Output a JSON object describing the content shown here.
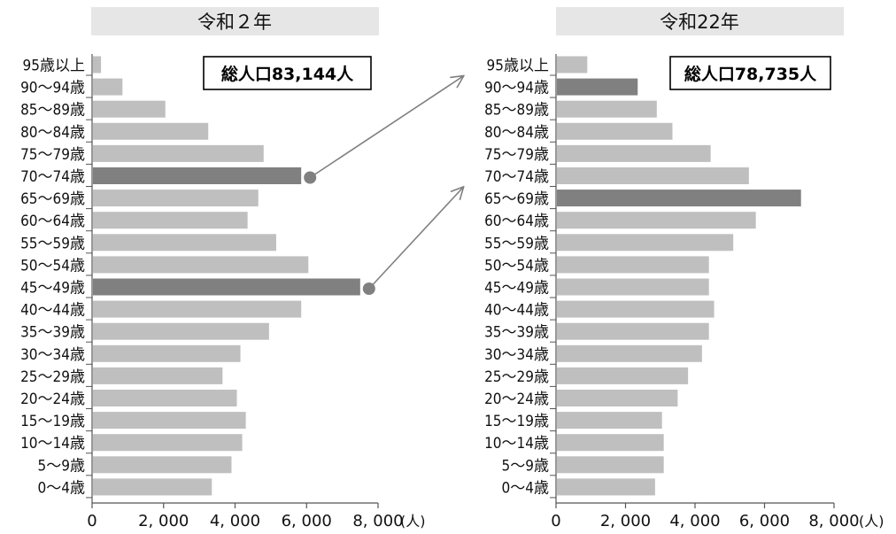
{
  "chart_data": [
    {
      "type": "bar",
      "orientation": "horizontal",
      "title": "令和２年",
      "annotation": "総人口83,144人",
      "categories": [
        "95歳以上",
        "90～94歳",
        "85～89歳",
        "80～84歳",
        "75～79歳",
        "70～74歳",
        "65～69歳",
        "60～64歳",
        "55～59歳",
        "50～54歳",
        "45～49歳",
        "40～44歳",
        "35～39歳",
        "30～34歳",
        "25～29歳",
        "20～24歳",
        "15～19歳",
        "10～14歳",
        "5～9歳",
        "0～4歳"
      ],
      "values": [
        250,
        850,
        2050,
        3250,
        4800,
        5850,
        4650,
        4350,
        5150,
        6050,
        7500,
        5850,
        4950,
        4150,
        3650,
        4050,
        4300,
        4200,
        3900,
        3350
      ],
      "highlighted": [
        "70～74歳",
        "45～49歳"
      ],
      "xlim": [
        0,
        8000
      ],
      "xticks": [
        "0",
        "2, 000",
        "4, 000",
        "6, 000",
        "8, 000"
      ],
      "unit": "(人)",
      "colors": {
        "bar": "#bfbfbf",
        "highlight": "#808080"
      }
    },
    {
      "type": "bar",
      "orientation": "horizontal",
      "title": "令和22年",
      "annotation": "総人口78,735人",
      "categories": [
        "95歳以上",
        "90～94歳",
        "85～89歳",
        "80～84歳",
        "75～79歳",
        "70～74歳",
        "65～69歳",
        "60～64歳",
        "55～59歳",
        "50～54歳",
        "45～49歳",
        "40～44歳",
        "35～39歳",
        "30～34歳",
        "25～29歳",
        "20～24歳",
        "15～19歳",
        "10～14歳",
        "5～9歳",
        "0～4歳"
      ],
      "values": [
        900,
        2350,
        2900,
        3350,
        4450,
        5550,
        7050,
        5750,
        5100,
        4400,
        4400,
        4550,
        4400,
        4200,
        3800,
        3500,
        3050,
        3100,
        3100,
        2850
      ],
      "highlighted": [
        "90～94歳",
        "65～69歳"
      ],
      "xlim": [
        0,
        8000
      ],
      "xticks": [
        "0",
        "2, 000",
        "4, 000",
        "6, 000",
        "8, 000"
      ],
      "unit": "(人)",
      "colors": {
        "bar": "#bfbfbf",
        "highlight": "#808080"
      }
    }
  ]
}
